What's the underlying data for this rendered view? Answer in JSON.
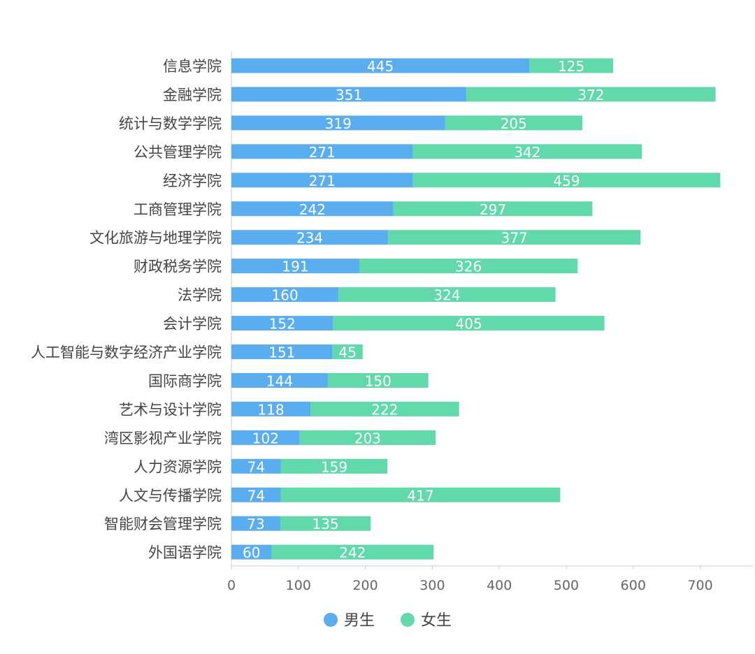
{
  "chart_data": {
    "type": "bar",
    "orientation": "horizontal",
    "stacked": true,
    "categories": [
      "信息学院",
      "金融学院",
      "统计与数学学院",
      "公共管理学院",
      "经济学院",
      "工商管理学院",
      "文化旅游与地理学院",
      "财政税务学院",
      "法学院",
      "会计学院",
      "人工智能与数字经济产业学院",
      "国际商学院",
      "艺术与设计学院",
      "湾区影视产业学院",
      "人力资源学院",
      "人文与传播学院",
      "智能财会管理学院",
      "外国语学院"
    ],
    "series": [
      {
        "name": "男生",
        "color": "#5aaef0",
        "values": [
          445,
          351,
          319,
          271,
          271,
          242,
          234,
          191,
          160,
          152,
          151,
          144,
          118,
          102,
          74,
          74,
          73,
          60
        ]
      },
      {
        "name": "女生",
        "color": "#62d9ab",
        "values": [
          125,
          372,
          205,
          342,
          459,
          297,
          377,
          326,
          324,
          405,
          45,
          150,
          222,
          203,
          159,
          417,
          135,
          242
        ]
      }
    ],
    "x_ticks": [
      0,
      100,
      200,
      300,
      400,
      500,
      600,
      700
    ],
    "xlim": [
      0,
      780
    ],
    "legend_position": "bottom-center",
    "data_labels": "inside-center",
    "grid": false
  }
}
